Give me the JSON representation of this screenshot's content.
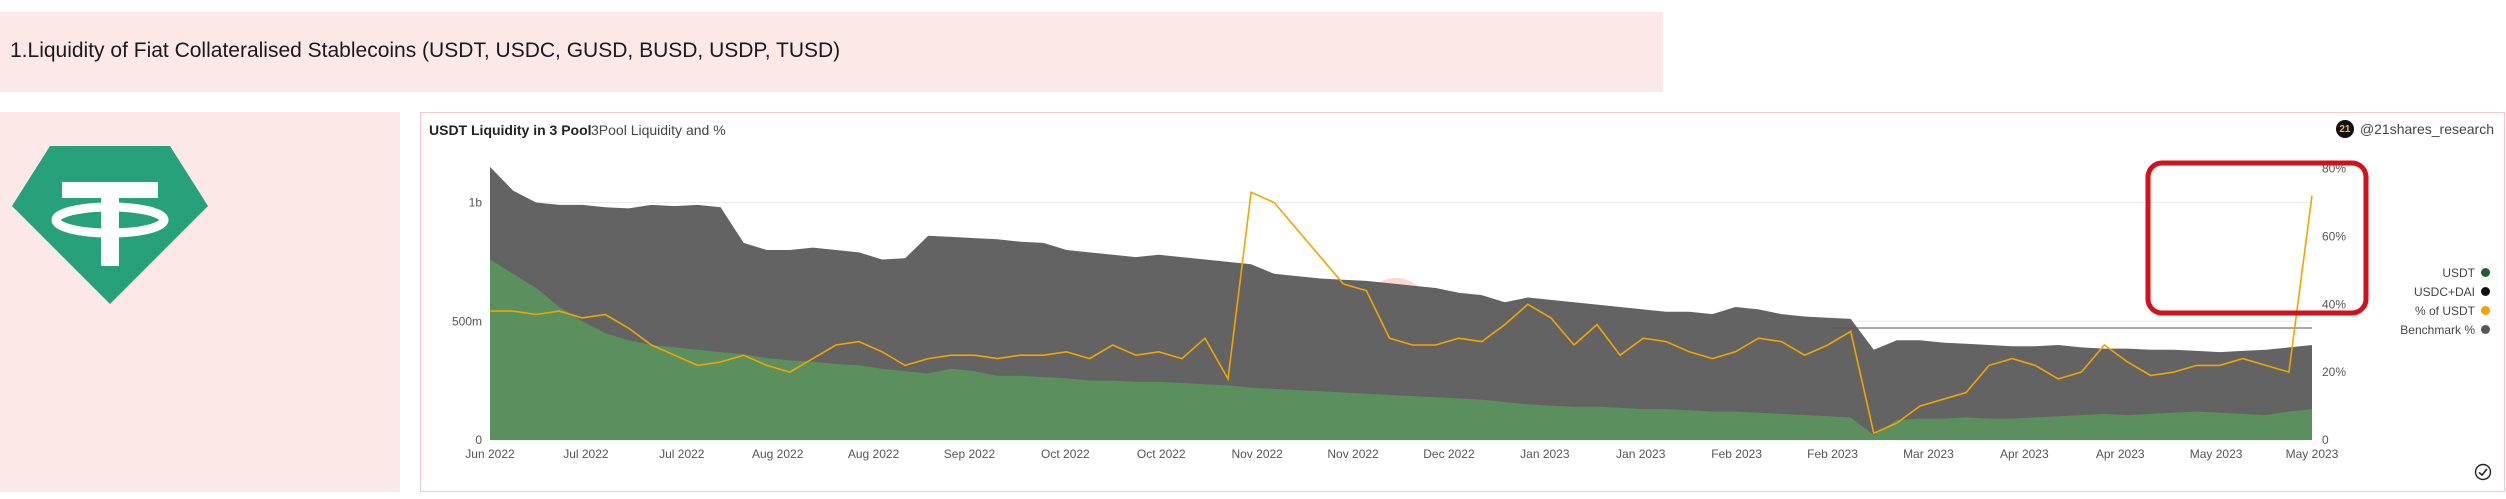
{
  "header": {
    "title": "1.Liquidity of Fiat Collateralised Stablecoins (USDT, USDC, GUSD, BUSD, USDP, TUSD)"
  },
  "logo": {
    "icon": "tether-icon",
    "color": "#26a17b"
  },
  "chart_header": {
    "title": "USDT Liquidity in 3 Pool",
    "subtitle": "3Pool Liquidity and %",
    "brand": "@21shares_research",
    "brand_badge": "21"
  },
  "chart_data": {
    "type": "area",
    "x_tick_labels": [
      "Jun 2022",
      "Jul 2022",
      "Jul 2022",
      "Aug 2022",
      "Aug 2022",
      "Sep 2022",
      "Oct 2022",
      "Oct 2022",
      "Nov 2022",
      "Nov 2022",
      "Dec 2022",
      "Jan 2023",
      "Jan 2023",
      "Feb 2023",
      "Feb 2023",
      "Mar 2023",
      "Apr 2023",
      "Apr 2023",
      "May 2023",
      "May 2023"
    ],
    "y_left": {
      "ticks": [
        0,
        500000000,
        1000000000
      ],
      "tick_labels": [
        "0",
        "500m",
        "1b"
      ],
      "ylim": [
        0,
        1200000000
      ]
    },
    "y_right": {
      "ticks": [
        0,
        20,
        40,
        60,
        80
      ],
      "tick_labels": [
        "0",
        "20%",
        "40%",
        "60%",
        "80%"
      ],
      "ylim": [
        0,
        84
      ]
    },
    "benchmark_percent": 33,
    "series": [
      {
        "name": "USDT",
        "color": "#5b8f5e",
        "axis": "left",
        "values": [
          760,
          700,
          640,
          560,
          500,
          450,
          420,
          400,
          390,
          380,
          370,
          360,
          345,
          335,
          330,
          320,
          315,
          300,
          290,
          280,
          300,
          290,
          270,
          270,
          265,
          260,
          250,
          250,
          245,
          245,
          240,
          235,
          230,
          220,
          215,
          210,
          205,
          200,
          195,
          190,
          185,
          180,
          175,
          170,
          160,
          150,
          145,
          140,
          140,
          135,
          130,
          130,
          125,
          120,
          120,
          115,
          110,
          105,
          100,
          95,
          20,
          85,
          90,
          90,
          95,
          90,
          90,
          95,
          100,
          105,
          110,
          105,
          110,
          115,
          120,
          115,
          110,
          105,
          120,
          130
        ]
      },
      {
        "name": "USDC+DAI",
        "color": "#636363",
        "axis": "left",
        "values": [
          1150,
          1050,
          1000,
          990,
          990,
          980,
          975,
          990,
          985,
          990,
          980,
          830,
          800,
          800,
          810,
          800,
          790,
          760,
          765,
          860,
          855,
          850,
          845,
          835,
          830,
          800,
          790,
          780,
          770,
          780,
          770,
          760,
          750,
          740,
          700,
          690,
          680,
          675,
          670,
          660,
          650,
          640,
          620,
          610,
          580,
          600,
          590,
          580,
          570,
          560,
          550,
          540,
          540,
          530,
          560,
          550,
          530,
          520,
          515,
          510,
          380,
          420,
          420,
          410,
          405,
          400,
          395,
          395,
          400,
          390,
          385,
          385,
          380,
          380,
          375,
          370,
          375,
          380,
          390,
          400
        ]
      },
      {
        "name": "% of USDT",
        "color": "#f0a500",
        "axis": "right",
        "values": [
          38,
          38,
          37,
          38,
          36,
          37,
          33,
          28,
          25,
          22,
          23,
          25,
          22,
          20,
          24,
          28,
          29,
          26,
          22,
          24,
          25,
          25,
          24,
          25,
          25,
          26,
          24,
          28,
          25,
          26,
          24,
          30,
          18,
          73,
          70,
          62,
          54,
          46,
          44,
          30,
          28,
          28,
          30,
          29,
          34,
          40,
          36,
          28,
          34,
          25,
          30,
          29,
          26,
          24,
          26,
          30,
          29,
          25,
          28,
          32,
          2,
          5,
          10,
          12,
          14,
          22,
          24,
          22,
          18,
          20,
          28,
          23,
          19,
          20,
          22,
          22,
          24,
          22,
          20,
          72
        ]
      },
      {
        "name": "Benchmark %",
        "color": "#555555",
        "axis": "right",
        "values": []
      }
    ]
  },
  "legend": [
    {
      "label": "USDT",
      "color": "#1e5e2e"
    },
    {
      "label": "USDC+DAI",
      "color": "#111111"
    },
    {
      "label": "% of USDT",
      "color": "#f0a500"
    },
    {
      "label": "Benchmark %",
      "color": "#555555"
    }
  ],
  "annotation": {
    "color": "#d0121b",
    "shape": "rounded-rectangle"
  },
  "watermark": "Dune"
}
